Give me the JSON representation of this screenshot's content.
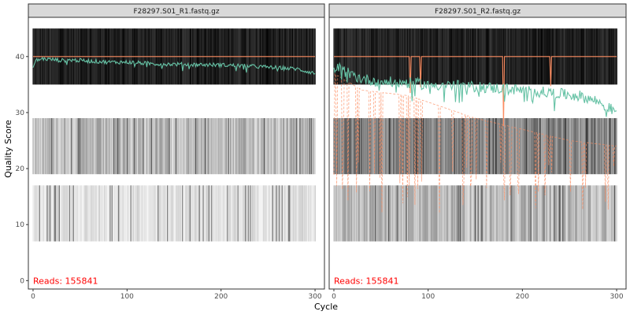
{
  "chart_data": {
    "type": "line",
    "xlabel": "Cycle",
    "ylabel": "Quality Score",
    "xlim": [
      -5,
      310
    ],
    "ylim": [
      -1.5,
      47
    ],
    "x_ticks": [
      0,
      100,
      200,
      300
    ],
    "y_ticks": [
      0,
      10,
      20,
      30,
      40
    ],
    "grid": false,
    "colors": {
      "mean": "#66c2a5",
      "median": "#fc8d62",
      "quartile": "#fc8d62",
      "reads_label": "#ff0000",
      "strip_fill": "#d9d9d9",
      "panel_border": "#333333"
    },
    "panels": [
      {
        "title": "F28297.S01_R1.fastq.gz",
        "reads_label": "Reads:  155841",
        "num_cycles": 301,
        "median_profile": [
          [
            0,
            40
          ],
          [
            300,
            40
          ]
        ],
        "quartile_profile": [],
        "mean_profile": [
          [
            0,
            38.0
          ],
          [
            3,
            39.3
          ],
          [
            10,
            39.6
          ],
          [
            20,
            39.5
          ],
          [
            30,
            39.3
          ],
          [
            40,
            39.4
          ],
          [
            60,
            39.2
          ],
          [
            80,
            39.0
          ],
          [
            100,
            39.0
          ],
          [
            130,
            38.7
          ],
          [
            160,
            38.6
          ],
          [
            200,
            38.5
          ],
          [
            230,
            38.3
          ],
          [
            260,
            38.0
          ],
          [
            280,
            37.8
          ],
          [
            300,
            37.0
          ]
        ],
        "heat_bands": [
          {
            "y": [
              35,
              45
            ],
            "shade": "dark"
          },
          {
            "y": [
              19,
              29
            ],
            "shade": "light"
          },
          {
            "y": [
              7,
              17
            ],
            "shade": "faint"
          }
        ]
      },
      {
        "title": "F28297.S01_R2.fastq.gz",
        "reads_label": "Reads:  155841",
        "num_cycles": 301,
        "median_profile": [
          [
            0,
            40
          ],
          [
            300,
            40
          ]
        ],
        "quartile_profile": [
          [
            0,
            37
          ],
          [
            30,
            34
          ],
          [
            80,
            33
          ],
          [
            150,
            29
          ],
          [
            200,
            27
          ],
          [
            250,
            25
          ],
          [
            300,
            24
          ]
        ],
        "mean_profile": [
          [
            0,
            37.5
          ],
          [
            5,
            38.0
          ],
          [
            15,
            37.0
          ],
          [
            30,
            36.0
          ],
          [
            50,
            35.5
          ],
          [
            80,
            35.3
          ],
          [
            100,
            35.0
          ],
          [
            130,
            34.8
          ],
          [
            160,
            34.5
          ],
          [
            200,
            34.0
          ],
          [
            230,
            33.5
          ],
          [
            260,
            33.0
          ],
          [
            280,
            32.0
          ],
          [
            300,
            30.0
          ]
        ],
        "heat_bands": [
          {
            "y": [
              35,
              45
            ],
            "shade": "dark"
          },
          {
            "y": [
              19,
              29
            ],
            "shade": "mid"
          },
          {
            "y": [
              7,
              17
            ],
            "shade": "light"
          }
        ]
      }
    ]
  }
}
